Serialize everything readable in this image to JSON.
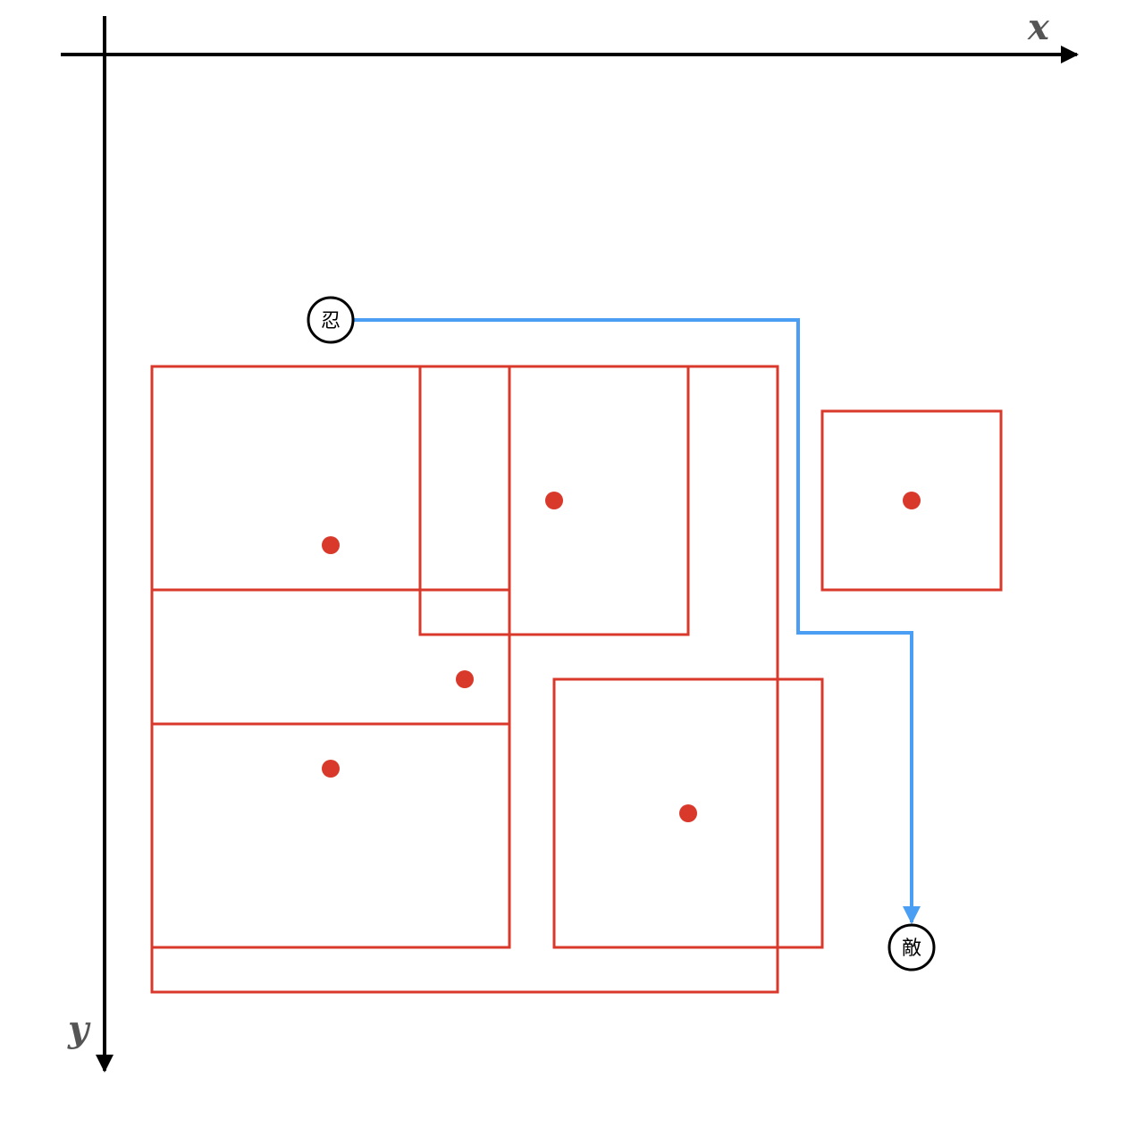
{
  "axes": {
    "x_label": "x",
    "y_label": "y"
  },
  "nodes": {
    "start": "忍",
    "end": "敵"
  },
  "colors": {
    "axis": "#000000",
    "obstacle": "#d9392b",
    "path": "#4a9ff5"
  }
}
